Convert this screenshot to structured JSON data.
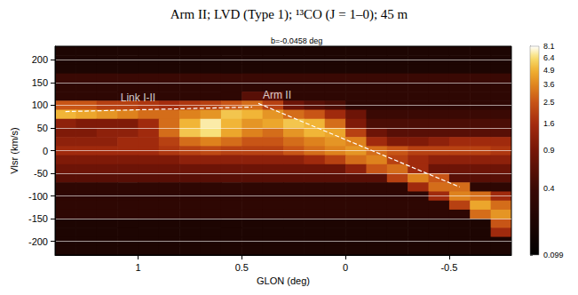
{
  "chart_data": {
    "type": "heatmap",
    "title": "Arm II; LVD (Type 1); ¹³CO (J = 1–0); 45 m",
    "subtitle": "b=-0.0458 deg",
    "x_label": "GLON (deg)",
    "y_label": "Vlsr (km/s)",
    "xlim": [
      1.4,
      -0.8
    ],
    "xticks": [
      1,
      0.5,
      0,
      -0.5
    ],
    "ylim": [
      -230,
      230
    ],
    "yticks": [
      -200,
      -150,
      -100,
      -50,
      0,
      50,
      100,
      150,
      200
    ],
    "grid": true,
    "lon": [
      1.35,
      1.25,
      1.15,
      1.05,
      0.95,
      0.85,
      0.75,
      0.65,
      0.55,
      0.45,
      0.35,
      0.25,
      0.15,
      0.05,
      -0.05,
      -0.15,
      -0.25,
      -0.35,
      -0.45,
      -0.55,
      -0.65,
      -0.75
    ],
    "vlsr": [
      220,
      200,
      180,
      160,
      140,
      120,
      100,
      80,
      60,
      40,
      20,
      0,
      -20,
      -40,
      -60,
      -80,
      -100,
      -120,
      -140,
      -160,
      -180,
      -200,
      -220
    ],
    "cells": [
      [
        0.2,
        0.2,
        0.2,
        0.2,
        0.2,
        0.2,
        0.2,
        0.2,
        0.2,
        0.2,
        0.2,
        0.2,
        0.2,
        0.2,
        0.2,
        0.2,
        0.2,
        0.2,
        0.2,
        0.2,
        0.2,
        0.2
      ],
      [
        0.2,
        0.2,
        0.2,
        0.2,
        0.2,
        0.2,
        0.2,
        0.2,
        0.2,
        0.2,
        0.2,
        0.2,
        0.2,
        0.2,
        0.2,
        0.2,
        0.2,
        0.2,
        0.2,
        0.2,
        0.2,
        0.2
      ],
      [
        0.2,
        0.2,
        0.2,
        0.2,
        0.2,
        0.2,
        0.2,
        0.2,
        0.2,
        0.2,
        0.2,
        0.2,
        0.2,
        0.2,
        0.2,
        0.2,
        0.2,
        0.2,
        0.2,
        0.2,
        0.2,
        0.2
      ],
      [
        0.4,
        0.4,
        0.4,
        0.4,
        0.4,
        0.4,
        0.4,
        0.4,
        0.4,
        0.4,
        0.4,
        0.4,
        0.4,
        0.4,
        0.4,
        0.4,
        0.4,
        0.4,
        0.4,
        0.4,
        0.4,
        0.4
      ],
      [
        0.3,
        0.3,
        0.3,
        0.3,
        0.3,
        0.3,
        0.3,
        0.3,
        0.3,
        0.3,
        0.3,
        0.3,
        0.3,
        0.3,
        0.3,
        0.3,
        0.3,
        0.3,
        0.3,
        0.3,
        0.3,
        0.3
      ],
      [
        0.3,
        0.3,
        0.3,
        0.3,
        0.3,
        0.3,
        0.3,
        0.3,
        0.3,
        0.6,
        0.6,
        0.3,
        0.3,
        0.3,
        0.3,
        0.3,
        0.3,
        0.3,
        0.3,
        0.3,
        0.3,
        0.3
      ],
      [
        2.5,
        2.5,
        2,
        2,
        1.8,
        1.6,
        1.8,
        2,
        2.5,
        3,
        2,
        0.8,
        0.6,
        0.5,
        0.3,
        0.3,
        0.3,
        0.3,
        0.3,
        0.3,
        0.3,
        0.3
      ],
      [
        5,
        4.5,
        4,
        3.5,
        3,
        3,
        3.5,
        4,
        5.5,
        5,
        4,
        3,
        2.5,
        1.5,
        0.8,
        0.4,
        0.4,
        0.4,
        0.4,
        0.4,
        0.4,
        0.4
      ],
      [
        1.2,
        1,
        1,
        1,
        1.5,
        3,
        5,
        7,
        5,
        4,
        4.5,
        5.5,
        5,
        3,
        1,
        0.5,
        0.5,
        0.5,
        0.5,
        0.5,
        0.5,
        0.5
      ],
      [
        1,
        1,
        1.2,
        1.2,
        1.5,
        3,
        5.5,
        6.5,
        4.5,
        3.5,
        3,
        4,
        5,
        4.5,
        2,
        0.8,
        0.6,
        0.6,
        0.6,
        0.6,
        0.6,
        0.6
      ],
      [
        1.2,
        1.2,
        1.2,
        1.5,
        1.5,
        2,
        3,
        3.5,
        3,
        2.5,
        2.5,
        3,
        3.5,
        4,
        3.5,
        1.5,
        1,
        1,
        1.2,
        1.5,
        1.5,
        1.5
      ],
      [
        1.5,
        1.5,
        1.5,
        1.5,
        1.5,
        1.8,
        2,
        2.2,
        2,
        2,
        2,
        2.5,
        3,
        3.5,
        4,
        3,
        2.5,
        2,
        2,
        2,
        2,
        1.8
      ],
      [
        1,
        1,
        1,
        1,
        1,
        1,
        1.2,
        1.2,
        1.2,
        1.2,
        1.2,
        1.2,
        1.5,
        2,
        3,
        3.5,
        2,
        1.5,
        1.2,
        1.2,
        1.2,
        1.2
      ],
      [
        0.8,
        0.8,
        0.8,
        0.8,
        0.8,
        0.8,
        0.8,
        0.8,
        0.8,
        0.8,
        0.8,
        0.8,
        0.8,
        0.8,
        1.2,
        2.5,
        3,
        1.5,
        0.8,
        0.8,
        0.8,
        0.8
      ],
      [
        0.6,
        0.6,
        0.6,
        0.6,
        0.6,
        0.6,
        0.6,
        0.6,
        0.6,
        0.6,
        0.6,
        0.6,
        0.6,
        0.6,
        0.6,
        0.6,
        2,
        3.5,
        2.5,
        0.6,
        0.6,
        0.6
      ],
      [
        0.3,
        0.3,
        0.3,
        0.3,
        0.3,
        0.3,
        0.3,
        0.3,
        0.3,
        0.3,
        0.3,
        0.3,
        0.3,
        0.3,
        0.3,
        0.3,
        0.3,
        1.5,
        3,
        3,
        0.3,
        0.3
      ],
      [
        0.3,
        0.3,
        0.3,
        0.3,
        0.3,
        0.3,
        0.3,
        0.3,
        0.3,
        0.3,
        0.3,
        0.3,
        0.3,
        0.3,
        0.3,
        0.3,
        0.3,
        0.3,
        1.5,
        3.5,
        3,
        1.5
      ],
      [
        0.3,
        0.3,
        0.3,
        0.3,
        0.3,
        0.3,
        0.3,
        0.3,
        0.3,
        0.3,
        0.3,
        0.3,
        0.3,
        0.3,
        0.3,
        0.3,
        0.3,
        0.3,
        0.3,
        2,
        4.5,
        3
      ],
      [
        0.3,
        0.3,
        0.3,
        0.3,
        0.3,
        0.3,
        0.3,
        0.3,
        0.3,
        0.3,
        0.3,
        0.3,
        0.3,
        0.3,
        0.3,
        0.3,
        0.3,
        0.3,
        0.3,
        0.3,
        3,
        4
      ],
      [
        0.2,
        0.2,
        0.2,
        0.2,
        0.2,
        0.2,
        0.2,
        0.2,
        0.2,
        0.2,
        0.2,
        0.2,
        0.2,
        0.2,
        0.2,
        0.2,
        0.2,
        0.2,
        0.2,
        0.2,
        0.2,
        2.5
      ],
      [
        0.2,
        0.2,
        0.2,
        0.2,
        0.2,
        0.2,
        0.2,
        0.2,
        0.2,
        0.2,
        0.2,
        0.2,
        0.2,
        0.2,
        0.2,
        0.2,
        0.2,
        0.2,
        0.2,
        0.2,
        0.2,
        1.5
      ],
      [
        0.2,
        0.2,
        0.2,
        0.2,
        0.2,
        0.2,
        0.2,
        0.2,
        0.2,
        0.2,
        0.2,
        0.2,
        0.2,
        0.2,
        0.2,
        0.2,
        0.2,
        0.2,
        0.2,
        0.2,
        0.2,
        0.2
      ],
      [
        0.2,
        0.2,
        0.2,
        0.2,
        0.2,
        0.2,
        0.2,
        0.2,
        0.2,
        0.2,
        0.2,
        0.2,
        0.2,
        0.2,
        0.2,
        0.2,
        0.2,
        0.2,
        0.2,
        0.2,
        0.2,
        0.2
      ]
    ],
    "colorbar": {
      "range": [
        0.099,
        8.1
      ],
      "ticks": [
        0.099,
        0.4,
        0.9,
        1.6,
        2.5,
        3.6,
        4.9,
        6.4,
        8.1
      ]
    },
    "lines": [
      {
        "x": [
          1.35,
          0.45
        ],
        "y": [
          86,
          96
        ],
        "line_style": "dashed",
        "color": "#ffffff"
      },
      {
        "x": [
          0.42,
          -0.55
        ],
        "y": [
          104,
          -80
        ],
        "line_style": "dashed",
        "color": "#ffffff"
      }
    ],
    "annotations": [
      {
        "text": "Link I-II",
        "x": 1.0,
        "y": 116,
        "color": "#ffffff"
      },
      {
        "text": "Arm II",
        "x": 0.33,
        "y": 122,
        "color": "#ffffff"
      }
    ]
  }
}
